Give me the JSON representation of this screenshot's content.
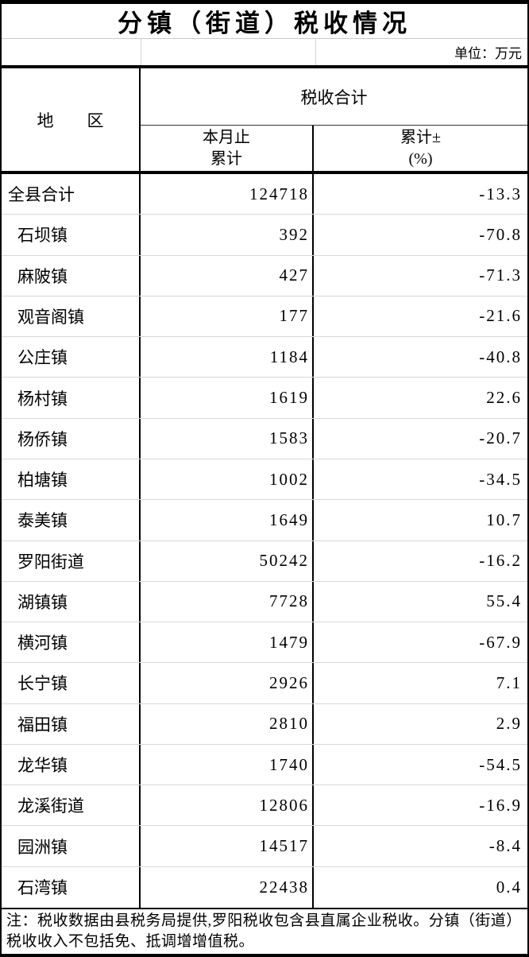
{
  "title": "分镇（街道）税收情况",
  "unit_label": "单位：万元",
  "header": {
    "region": "地　　区",
    "tax_total": "税收合计",
    "month_line1": "本月止",
    "month_line2": "累计",
    "pct_line1": "累计±",
    "pct_line2": "(%)"
  },
  "rows": [
    {
      "region": "全县合计",
      "value": 124718,
      "pct": -13.3
    },
    {
      "region": "石坝镇",
      "value": 392,
      "pct": -70.8
    },
    {
      "region": "麻陂镇",
      "value": 427,
      "pct": -71.3
    },
    {
      "region": "观音阁镇",
      "value": 177,
      "pct": -21.6
    },
    {
      "region": "公庄镇",
      "value": 1184,
      "pct": -40.8
    },
    {
      "region": "杨村镇",
      "value": 1619,
      "pct": 22.6
    },
    {
      "region": "杨侨镇",
      "value": 1583,
      "pct": -20.7
    },
    {
      "region": "柏塘镇",
      "value": 1002,
      "pct": -34.5
    },
    {
      "region": "泰美镇",
      "value": 1649,
      "pct": 10.7
    },
    {
      "region": "罗阳街道",
      "value": 50242,
      "pct": -16.2
    },
    {
      "region": "湖镇镇",
      "value": 7728,
      "pct": 55.4
    },
    {
      "region": "横河镇",
      "value": 1479,
      "pct": -67.9
    },
    {
      "region": "长宁镇",
      "value": 2926,
      "pct": 7.1
    },
    {
      "region": "福田镇",
      "value": 2810,
      "pct": 2.9
    },
    {
      "region": "龙华镇",
      "value": 1740,
      "pct": -54.5
    },
    {
      "region": "龙溪街道",
      "value": 12806,
      "pct": -16.9
    },
    {
      "region": "园洲镇",
      "value": 14517,
      "pct": -8.4
    },
    {
      "region": "石湾镇",
      "value": 22438,
      "pct": 0.4
    }
  ],
  "note": "注：税收数据由县税务局提供,罗阳税收包含县直属企业税收。分镇（街道）税收收入不包括免、抵调增增值税。"
}
